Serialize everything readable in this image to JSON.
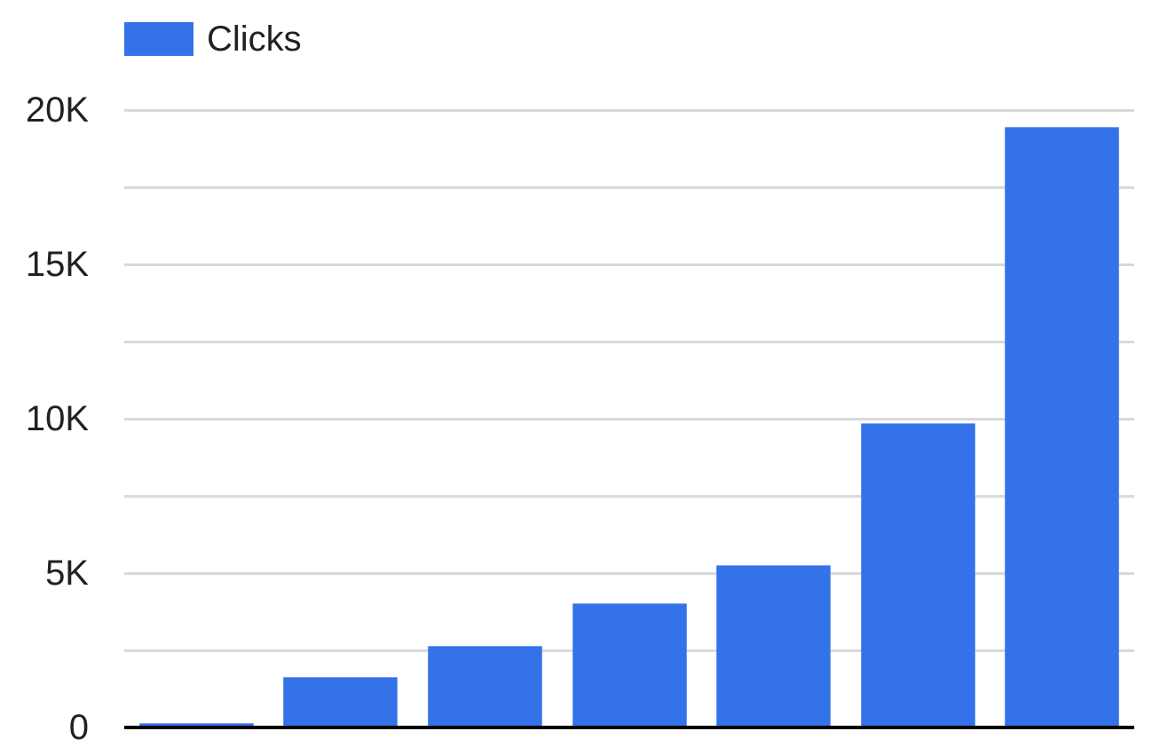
{
  "chart_data": {
    "type": "bar",
    "title": "",
    "xlabel": "",
    "ylabel": "",
    "legend": {
      "label": "Clicks",
      "position": "top-left"
    },
    "categories": [
      "",
      "",
      "",
      "",
      "",
      "",
      ""
    ],
    "values": [
      150,
      1640,
      2630,
      4020,
      5260,
      9860,
      19450
    ],
    "ylim": [
      0,
      20000
    ],
    "yticks": [
      {
        "value": 0,
        "label": "0"
      },
      {
        "value": 5000,
        "label": "5K"
      },
      {
        "value": 10000,
        "label": "10K"
      },
      {
        "value": 15000,
        "label": "15K"
      },
      {
        "value": 20000,
        "label": "20K"
      }
    ],
    "minor_gridline_step": 2500,
    "grid": true,
    "colors": {
      "bar": "#3372e8",
      "gridline": "#d9d9d9",
      "axis_line": "#000000",
      "text": "#212121",
      "background": "#ffffff"
    }
  }
}
